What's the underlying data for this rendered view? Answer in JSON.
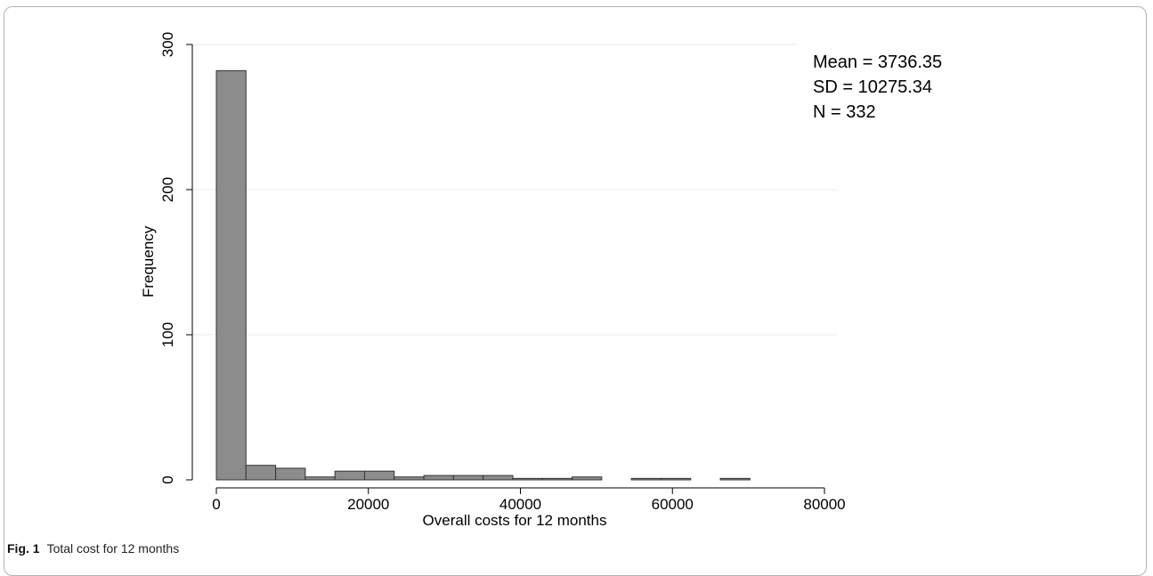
{
  "chart_data": {
    "type": "bar",
    "xlabel": "Overall costs for 12 months",
    "ylabel": "Frequency",
    "xlim": [
      0,
      80000
    ],
    "ylim": [
      0,
      300
    ],
    "x_ticks": [
      0,
      20000,
      40000,
      60000,
      80000
    ],
    "y_ticks": [
      0,
      100,
      200,
      300
    ],
    "bin_width": 3900,
    "bins": [
      {
        "start": 0,
        "count": 282
      },
      {
        "start": 3900,
        "count": 10
      },
      {
        "start": 7800,
        "count": 8
      },
      {
        "start": 11700,
        "count": 2
      },
      {
        "start": 15600,
        "count": 6
      },
      {
        "start": 19500,
        "count": 6
      },
      {
        "start": 23400,
        "count": 2
      },
      {
        "start": 27300,
        "count": 3
      },
      {
        "start": 31200,
        "count": 3
      },
      {
        "start": 35100,
        "count": 3
      },
      {
        "start": 39000,
        "count": 1
      },
      {
        "start": 42900,
        "count": 1
      },
      {
        "start": 46800,
        "count": 2
      },
      {
        "start": 50700,
        "count": 0
      },
      {
        "start": 54600,
        "count": 1
      },
      {
        "start": 58500,
        "count": 1
      },
      {
        "start": 62400,
        "count": 0
      },
      {
        "start": 66300,
        "count": 1
      }
    ],
    "grid": true,
    "annotations": [
      "Mean = 3736.35",
      "SD = 10275.34",
      "N = 332"
    ],
    "colors": {
      "bar_fill": "#8c8c8c",
      "bar_stroke": "#333333",
      "grid": "#eaeaea"
    }
  },
  "caption": {
    "label": "Fig. 1",
    "text": "Total cost for 12 months"
  }
}
